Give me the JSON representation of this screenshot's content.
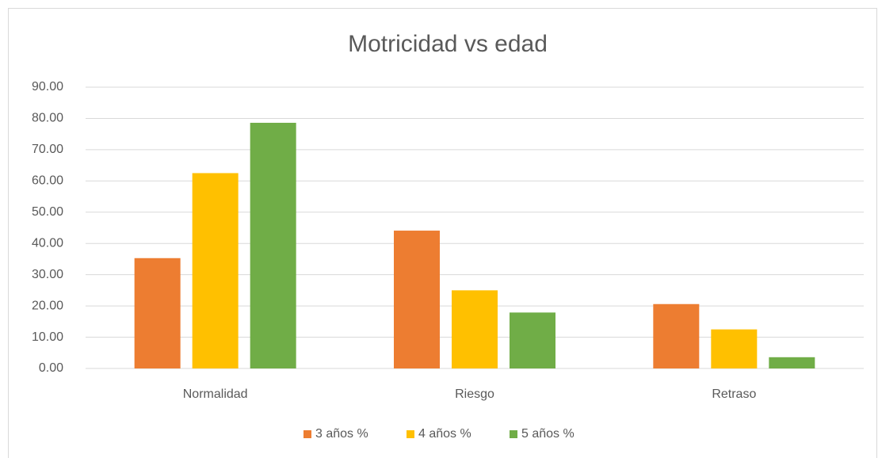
{
  "chart_data": {
    "type": "bar",
    "title": "Motricidad vs edad",
    "categories": [
      "Normalidad",
      "Riesgo",
      "Retraso"
    ],
    "series": [
      {
        "name": "3 años %",
        "color": "#ed7d31",
        "values": [
          35.3,
          44.1,
          20.6
        ]
      },
      {
        "name": "4 años %",
        "color": "#ffc000",
        "values": [
          62.5,
          25.0,
          12.5
        ]
      },
      {
        "name": "5 años %",
        "color": "#70ad47",
        "values": [
          78.6,
          17.9,
          3.6
        ]
      }
    ],
    "ylim": [
      0,
      90
    ],
    "yticks": [
      {
        "value": 0,
        "label": "0.00"
      },
      {
        "value": 10,
        "label": "10.00"
      },
      {
        "value": 20,
        "label": "20.00"
      },
      {
        "value": 30,
        "label": "30.00"
      },
      {
        "value": 40,
        "label": "40.00"
      },
      {
        "value": 50,
        "label": "50.00"
      },
      {
        "value": 60,
        "label": "60.00"
      },
      {
        "value": 70,
        "label": "70.00"
      },
      {
        "value": 80,
        "label": "80.00"
      },
      {
        "value": 90,
        "label": "90.00"
      }
    ],
    "grid": true,
    "legend": "bottom"
  }
}
